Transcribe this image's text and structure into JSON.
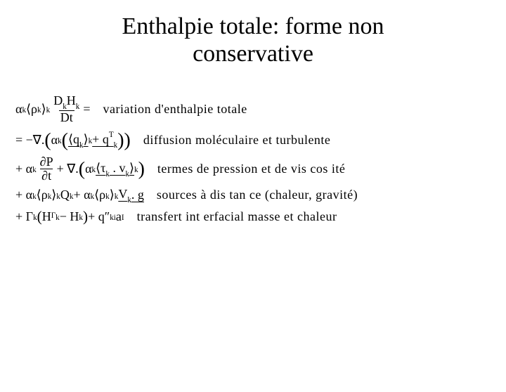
{
  "title_line1": "Enthalpie totale: forme non",
  "title_line2": "conservative",
  "lines": {
    "l1": {
      "eq_a": "α",
      "eq_b": "⟨ρ",
      "eq_c": "⟩",
      "eq_d": "D",
      "eq_e": "H",
      "eq_f": "Dt",
      "eq_g": " =",
      "k": "k",
      "desc": "variation d'enthalpie totale"
    },
    "l2": {
      "lead": "= −∇.",
      "a": "α",
      "q1": "⟨q",
      "q2": "⟩",
      "plus": " + q",
      "T": "T",
      "k": "k",
      "under_k": "k",
      "desc": "diffusion moléculaire et turbulente"
    },
    "l3": {
      "plus": "+ α",
      "dP": "∂P",
      "dt": "∂t",
      "grad": " + ∇.",
      "a": "α",
      "tau": "⟨τ",
      "dot": " . v",
      "ang2": "⟩",
      "k": "k",
      "under_k": "k",
      "desc": "termes de pression et de vis cos ité"
    },
    "l4": {
      "plus": "+ α",
      "rho": "⟨ρ",
      "ang": "⟩",
      "Q": " Q",
      "plus2": " + α",
      "V": " V",
      "g": ". g",
      "k": "k",
      "desc": "sources à dis tan ce (chaleur, gravité)"
    },
    "l5": {
      "plus": "+ Γ",
      "H1": "H",
      "minus": " − H",
      "plus2": " + q″",
      "a": " a",
      "k": "k",
      "Gamma": "Γ",
      "ki": "ki",
      "I": "I",
      "desc": "transfert int erfacial masse et chaleur"
    }
  },
  "colors": {
    "text": "#000000",
    "bg": "#ffffff"
  },
  "fonts": {
    "title_size": 34,
    "body_size": 18
  }
}
